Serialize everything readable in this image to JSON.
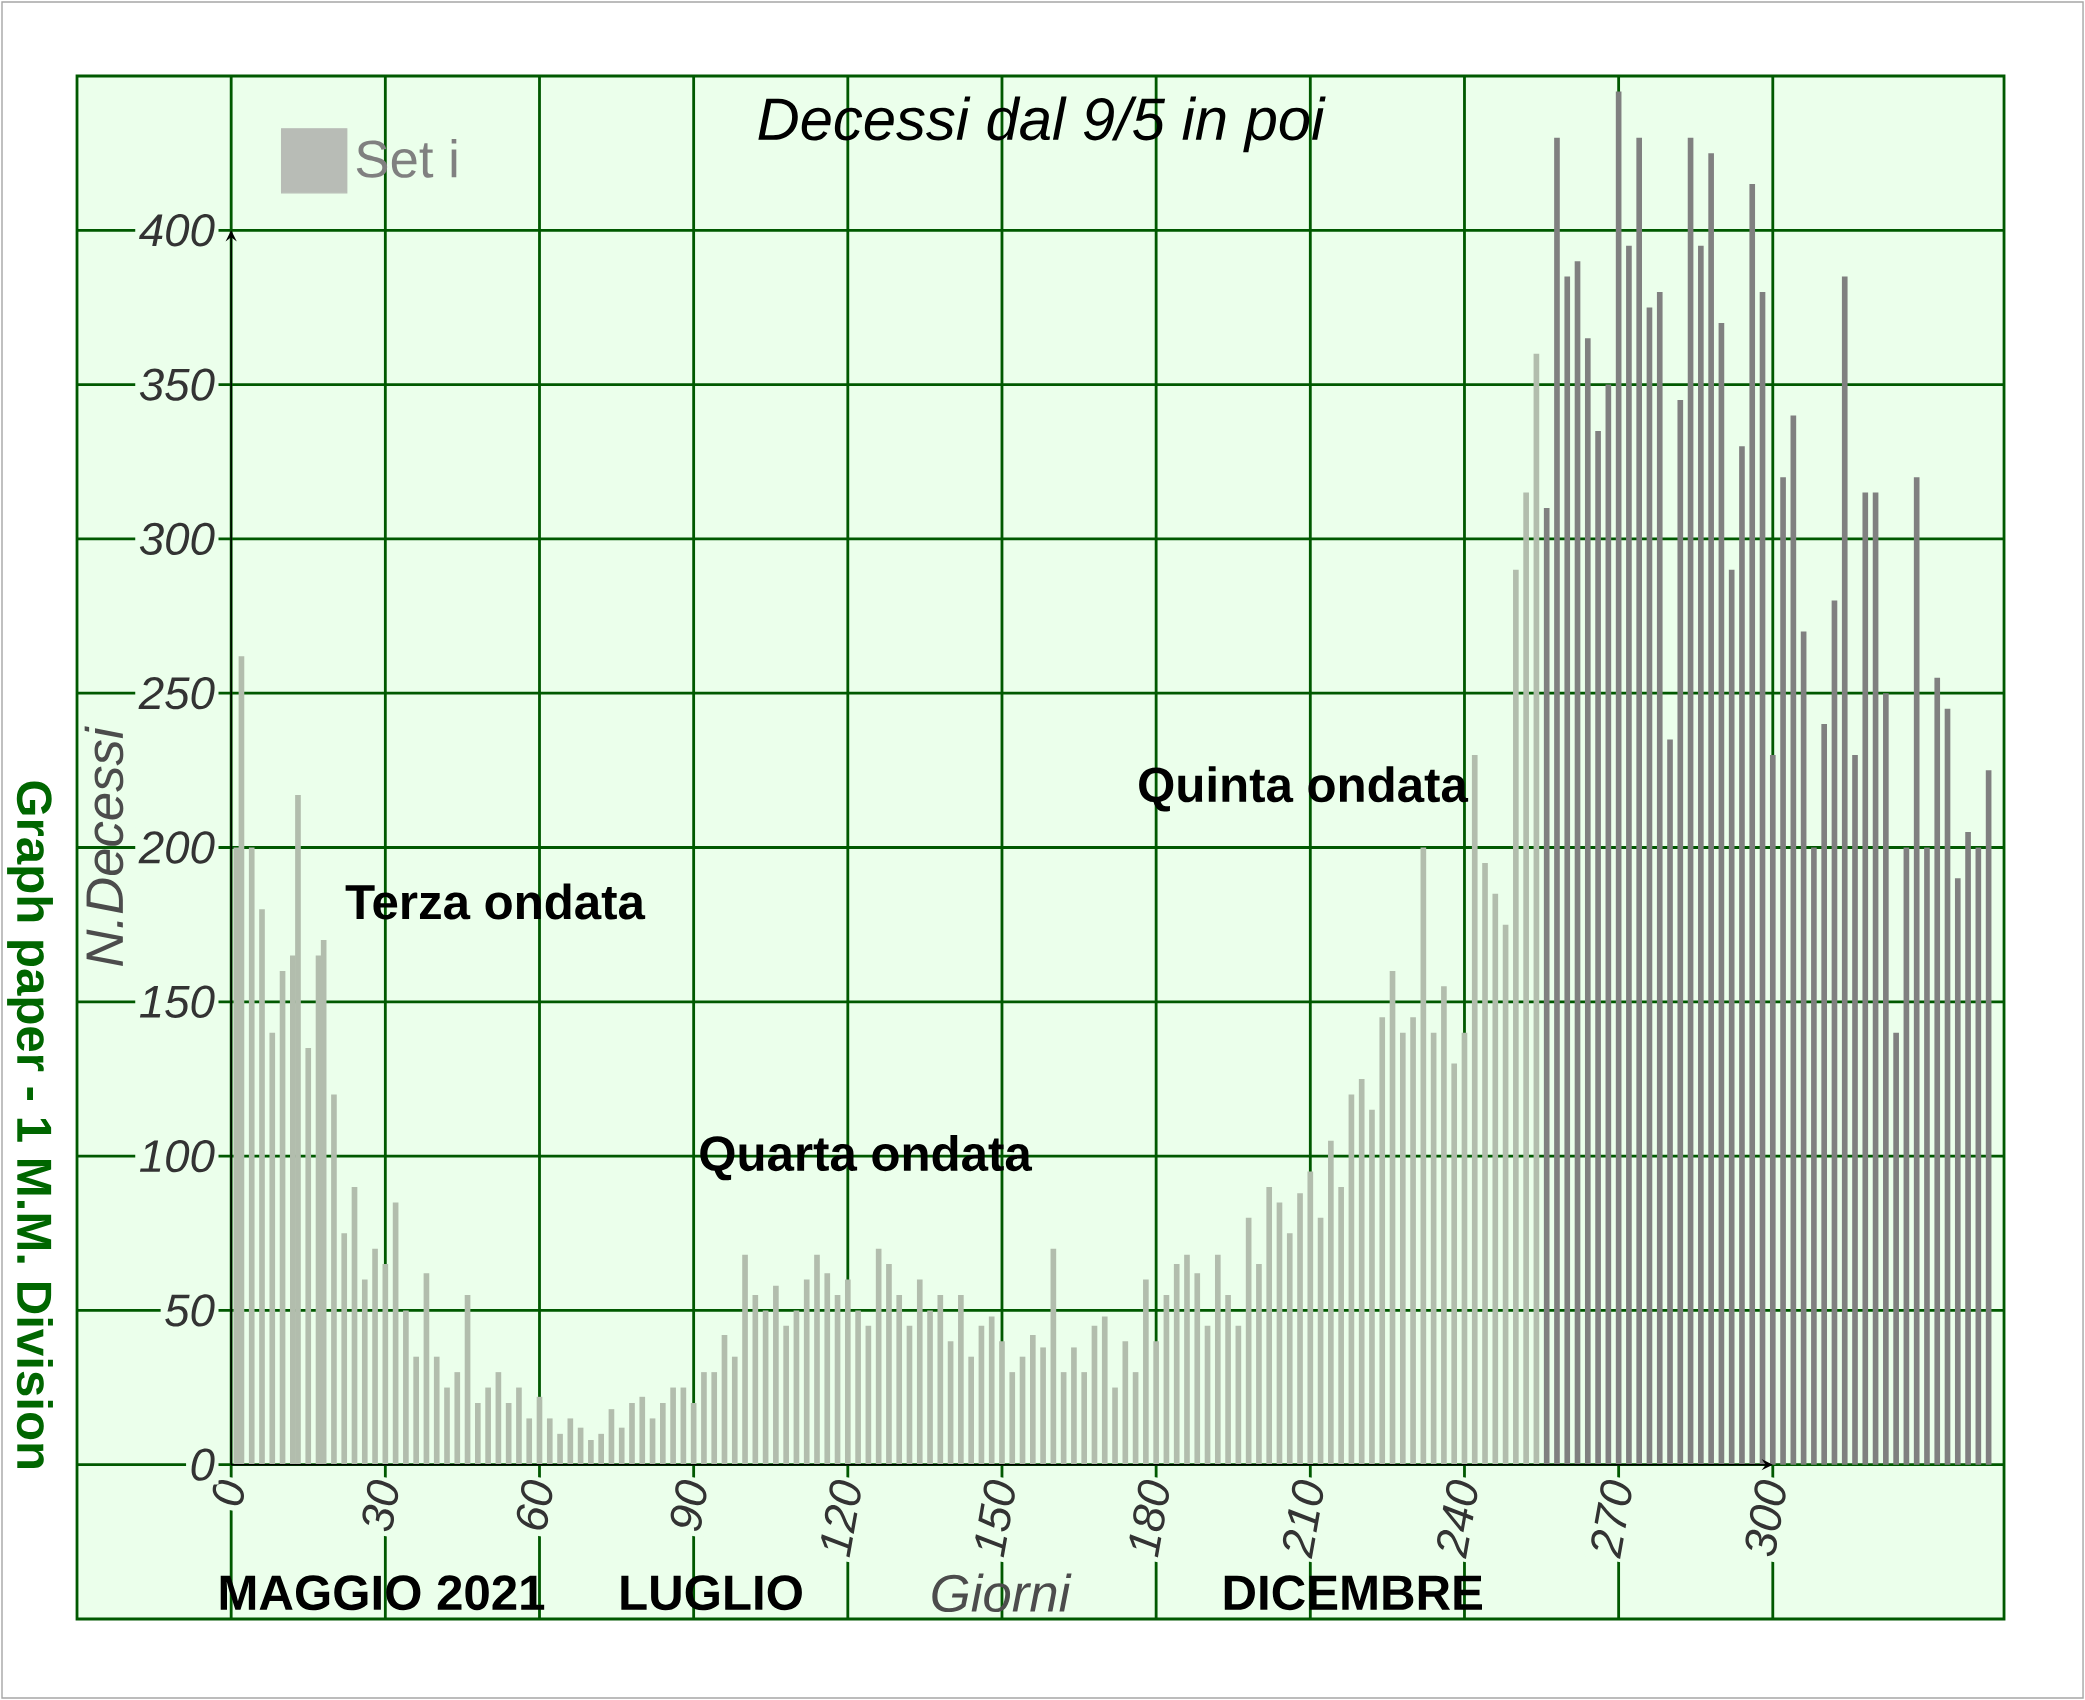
{
  "chart_data": {
    "type": "bar",
    "title": "Decessi dal 9/5 in poi",
    "xlabel": "Giorni",
    "ylabel": "N.Decessi",
    "x": [
      1,
      2,
      4,
      6,
      8,
      10,
      12,
      13,
      15,
      17,
      18,
      20,
      22,
      24,
      26,
      28,
      30,
      32,
      34,
      36,
      38,
      40,
      42,
      44,
      46,
      48,
      50,
      52,
      54,
      56,
      58,
      60,
      62,
      64,
      66,
      68,
      70,
      72,
      74,
      76,
      78,
      80,
      82,
      84,
      86,
      88,
      90,
      92,
      94,
      96,
      98,
      100,
      102,
      104,
      106,
      108,
      110,
      112,
      114,
      116,
      118,
      120,
      122,
      124,
      126,
      128,
      130,
      132,
      134,
      136,
      138,
      140,
      142,
      144,
      146,
      148,
      150,
      152,
      154,
      156,
      158,
      160,
      162,
      164,
      166,
      168,
      170,
      172,
      174,
      176,
      178,
      180,
      182,
      184,
      186,
      188,
      190,
      192,
      194,
      196,
      198,
      200,
      202,
      204,
      206,
      208,
      210,
      212,
      214,
      216,
      218,
      220,
      222,
      224,
      226,
      228,
      230,
      232,
      234,
      236,
      238,
      240,
      242,
      244,
      246,
      248,
      250,
      252,
      254,
      256,
      258,
      260,
      262,
      264,
      266,
      268,
      270,
      272,
      274,
      276,
      278,
      280,
      282,
      284,
      286,
      288,
      290,
      292,
      294,
      296,
      298,
      300,
      302,
      304,
      306,
      308,
      310,
      312,
      314,
      316,
      318,
      320,
      322,
      324,
      326,
      328,
      330,
      332,
      334,
      336,
      338,
      340,
      342
    ],
    "series": [
      {
        "name": "Set i",
        "color": "#b8bcb6",
        "values": [
          200,
          262,
          200,
          180,
          140,
          160,
          165,
          217,
          135,
          165,
          170,
          120,
          75,
          90,
          60,
          70,
          65,
          85,
          50,
          35,
          62,
          35,
          25,
          30,
          55,
          20,
          25,
          30,
          20,
          25,
          15,
          22,
          15,
          10,
          15,
          12,
          8,
          10,
          18,
          12,
          20,
          22,
          15,
          20,
          25,
          25,
          20,
          30,
          30,
          42,
          35,
          68,
          55,
          50,
          58,
          45,
          50,
          60,
          68,
          62,
          55,
          60,
          50,
          45,
          70,
          65,
          55,
          45,
          60,
          50,
          55,
          40,
          55,
          35,
          45,
          48,
          40,
          30,
          35,
          42,
          38,
          70,
          30,
          38,
          30,
          45,
          48,
          25,
          40,
          30,
          60,
          40,
          55,
          65,
          68,
          62,
          45,
          68,
          55,
          45,
          80,
          65,
          90,
          85,
          75,
          88,
          95,
          80,
          105,
          90,
          120,
          125,
          115,
          145,
          160,
          140,
          145,
          200,
          140,
          155,
          130,
          140,
          230,
          195,
          185,
          175,
          290,
          315,
          360,
          310,
          430,
          385,
          390,
          365,
          335,
          350,
          445,
          395,
          430,
          375,
          380,
          235,
          345,
          430,
          395,
          425,
          370,
          290,
          330,
          415,
          380,
          230,
          320,
          340,
          270,
          200,
          240,
          280,
          385,
          230,
          315,
          315,
          250,
          140,
          200,
          320,
          200,
          255,
          245,
          190,
          205,
          200,
          225
        ],
        "colors": [
          "#b2bdad",
          "#b2bdad",
          "#b2bdad",
          "#b2bdad",
          "#b2bdad",
          "#b2bdad",
          "#b2bdad",
          "#b2bdad",
          "#b2bdad",
          "#b2bdad",
          "#b2bdad",
          "#b2bdad",
          "#b2bdad",
          "#b2bdad",
          "#b2bdad",
          "#b2bdad",
          "#b2bdad",
          "#b2bdad",
          "#b2bdad",
          "#b2bdad",
          "#b2bdad",
          "#b2bdad",
          "#b2bdad",
          "#b2bdad",
          "#b2bdad",
          "#b2bdad",
          "#b2bdad",
          "#b2bdad",
          "#b2bdad",
          "#b2bdad",
          "#b2bdad",
          "#b2bdad",
          "#b2bdad",
          "#b2bdad",
          "#b2bdad",
          "#b2bdad",
          "#b2bdad",
          "#b2bdad",
          "#b2bdad",
          "#b2bdad",
          "#b2bdad",
          "#b2bdad",
          "#b2bdad",
          "#b2bdad",
          "#b2bdad",
          "#b2bdad",
          "#b2bdad",
          "#b2bdad",
          "#b2bdad",
          "#b2bdad",
          "#b2bdad",
          "#b2bdad",
          "#b2bdad",
          "#b2bdad",
          "#b2bdad",
          "#b2bdad",
          "#b2bdad",
          "#b2bdad",
          "#b2bdad",
          "#b2bdad",
          "#b2bdad",
          "#b2bdad",
          "#b2bdad",
          "#b2bdad",
          "#b2bdad",
          "#b2bdad",
          "#b2bdad",
          "#b2bdad",
          "#b2bdad",
          "#b2bdad",
          "#b2bdad",
          "#b2bdad",
          "#b2bdad",
          "#b2bdad",
          "#b2bdad",
          "#b2bdad",
          "#b2bdad",
          "#b2bdad",
          "#b2bdad",
          "#b2bdad",
          "#b2bdad",
          "#b2bdad",
          "#b2bdad",
          "#b2bdad",
          "#b2bdad",
          "#b2bdad",
          "#b2bdad",
          "#b2bdad",
          "#b2bdad",
          "#b2bdad",
          "#b2bdad",
          "#b2bdad",
          "#b2bdad",
          "#b2bdad",
          "#b2bdad",
          "#b2bdad",
          "#b2bdad",
          "#b2bdad",
          "#b2bdad",
          "#b2bdad",
          "#b2bdad",
          "#b2bdad",
          "#b2bdad",
          "#b2bdad",
          "#b2bdad",
          "#b2bdad",
          "#b2bdad",
          "#b2bdad",
          "#b2bdad",
          "#b2bdad",
          "#b2bdad",
          "#b2bdad",
          "#b2bdad",
          "#b2bdad",
          "#b2bdad",
          "#b2bdad",
          "#b2bdad",
          "#b2bdad",
          "#b2bdad",
          "#b2bdad",
          "#b2bdad",
          "#b2bdad",
          "#b2bdad",
          "#b2bdad",
          "#b2bdad",
          "#b2bdad",
          "#b2bdad",
          "#b2bdad",
          "#b2bdad",
          "#808080",
          "#808080",
          "#808080",
          "#808080",
          "#808080",
          "#808080",
          "#808080",
          "#808080",
          "#808080",
          "#808080",
          "#808080",
          "#808080",
          "#808080",
          "#808080",
          "#808080",
          "#808080",
          "#808080",
          "#808080",
          "#808080",
          "#808080",
          "#808080",
          "#808080",
          "#808080",
          "#808080",
          "#808080",
          "#808080",
          "#808080",
          "#808080",
          "#808080",
          "#808080",
          "#808080",
          "#808080",
          "#808080",
          "#808080",
          "#808080",
          "#808080",
          "#808080",
          "#808080",
          "#808080",
          "#808080",
          "#808080",
          "#808080",
          "#808080",
          "#808080"
        ]
      }
    ],
    "xlim": [
      -30,
      345
    ],
    "ylim": [
      -50,
      450
    ],
    "xticks": [
      0,
      30,
      60,
      90,
      120,
      150,
      180,
      210,
      240,
      270,
      300
    ],
    "yticks": [
      0,
      50,
      100,
      150,
      200,
      250,
      300,
      350,
      400
    ],
    "grid": true,
    "legend": "top left",
    "annotations": [
      "**Terza ondata**",
      "**Quarta ondata**",
      "**Quinta ondata**",
      "**MAGGIO 2021**",
      "**LUGLIO**",
      "**DICEMBRE**",
      "**Graph paper - 1 M.M. Division**"
    ]
  }
}
